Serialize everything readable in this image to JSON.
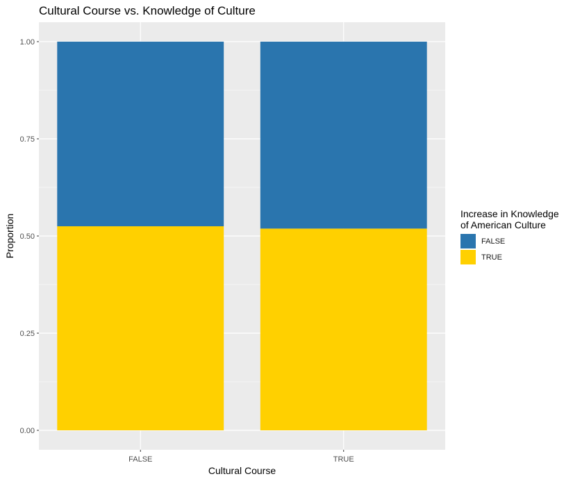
{
  "chart_data": {
    "type": "bar",
    "stacked": true,
    "title": "Cultural Course vs. Knowledge of Culture",
    "xlabel": "Cultural Course",
    "ylabel": "Proportion",
    "categories": [
      "FALSE",
      "TRUE"
    ],
    "series": [
      {
        "name": "TRUE",
        "values": [
          0.525,
          0.519
        ],
        "color": "#FFD000"
      },
      {
        "name": "FALSE",
        "values": [
          0.475,
          0.481
        ],
        "color": "#2A75AE"
      }
    ],
    "ylim": [
      0,
      1
    ],
    "yticks": [
      "0.00",
      "0.25",
      "0.50",
      "0.75",
      "1.00"
    ],
    "ytick_values": [
      0,
      0.25,
      0.5,
      0.75,
      1.0
    ],
    "grid": true,
    "legend": {
      "title_lines": [
        "Increase in Knowledge",
        "of American Culture"
      ],
      "position": "right",
      "items": [
        {
          "label": "FALSE",
          "color": "#2A75AE"
        },
        {
          "label": "TRUE",
          "color": "#FFD000"
        }
      ]
    },
    "panel_color": "#EBEBEB"
  }
}
